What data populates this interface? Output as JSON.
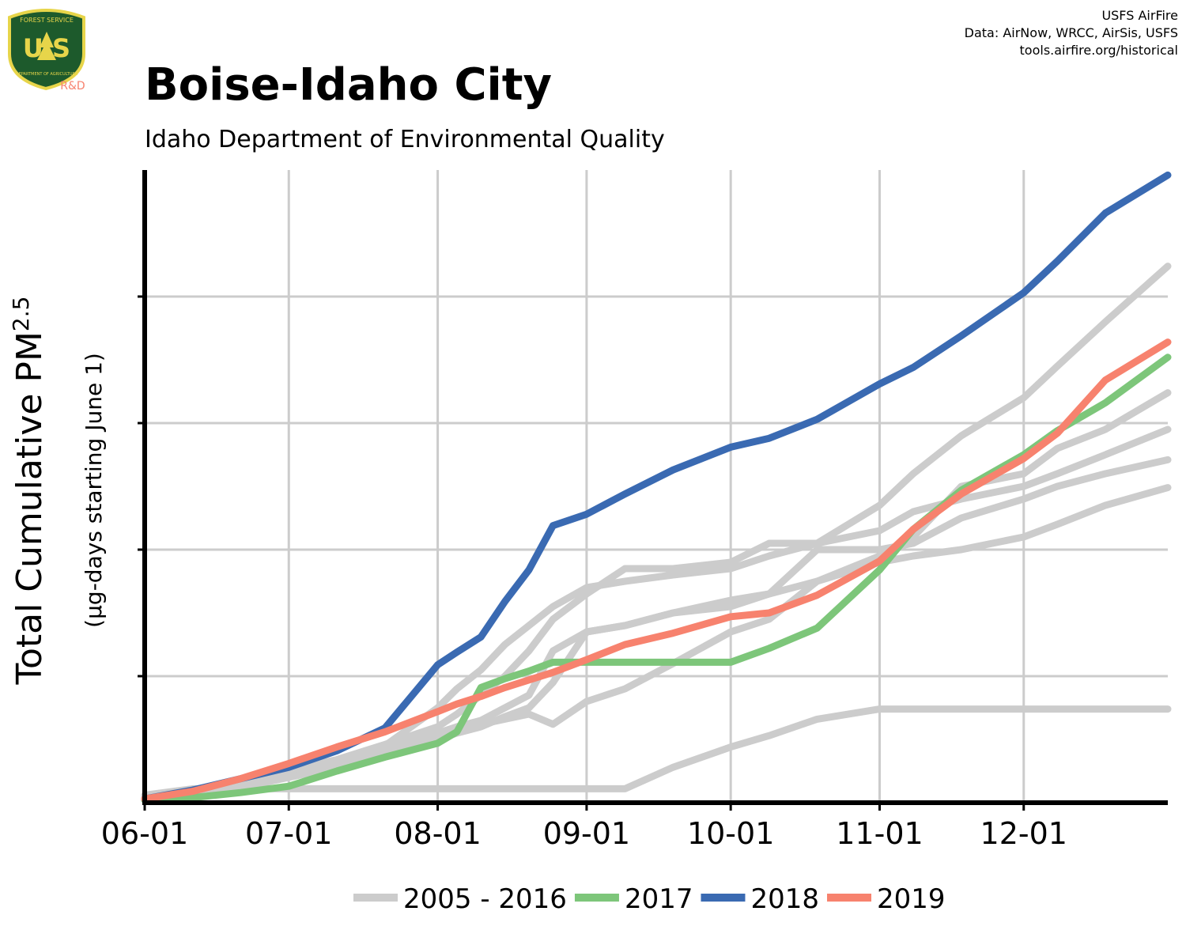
{
  "logo": {
    "top": "FOREST SERVICE",
    "letters": "U S",
    "bottom": "DEPARTMENT OF AGRICULTURE",
    "unit": "R&D"
  },
  "credits": [
    "USFS AirFire",
    "Data: AirNow, WRCC, AirSis, USFS",
    "tools.airfire.org/historical"
  ],
  "chart_data": {
    "type": "line",
    "title": "Boise-Idaho City",
    "subtitle": "Idaho Department of Environmental Quality",
    "ylabel": "Total Cumulative PM",
    "ylabel_sub": "2.5",
    "ylabel_note": "(µg-days starting June 1)",
    "x": [
      0,
      10,
      20,
      30,
      40,
      50,
      61,
      65,
      70,
      75,
      80,
      85,
      92,
      100,
      110,
      122,
      130,
      140,
      153,
      160,
      170,
      183,
      190,
      200,
      213
    ],
    "xlim": [
      0,
      213
    ],
    "xticks": [
      {
        "value": 0,
        "label": "06-01"
      },
      {
        "value": 30,
        "label": "07-01"
      },
      {
        "value": 61,
        "label": "08-01"
      },
      {
        "value": 92,
        "label": "09-01"
      },
      {
        "value": 122,
        "label": "10-01"
      },
      {
        "value": 153,
        "label": "11-01"
      },
      {
        "value": 183,
        "label": "12-01"
      }
    ],
    "ylim": [
      0,
      5
    ],
    "yticks": [
      1,
      2,
      3,
      4
    ],
    "grid": true,
    "series": [
      {
        "name": "2005 - 2016",
        "color": "#cccccc",
        "values": [
          [
            0.06,
            0.11,
            0.11,
            0.11,
            0.11,
            0.11,
            0.11,
            0.11,
            0.11,
            0.11,
            0.11,
            0.11,
            0.11,
            0.11,
            0.28,
            0.44,
            0.53,
            0.66,
            0.74,
            0.74,
            0.74,
            0.74,
            0.74,
            0.74,
            0.74
          ],
          [
            0.03,
            0.08,
            0.15,
            0.25,
            0.3,
            0.45,
            0.75,
            0.9,
            1.05,
            1.25,
            1.4,
            1.55,
            1.7,
            1.75,
            1.8,
            1.85,
            1.95,
            2.05,
            2.35,
            2.6,
            2.9,
            3.2,
            3.45,
            3.8,
            4.24
          ],
          [
            0.03,
            0.07,
            0.14,
            0.24,
            0.33,
            0.42,
            0.55,
            0.58,
            0.62,
            0.66,
            0.7,
            0.62,
            0.8,
            0.9,
            1.1,
            1.35,
            1.45,
            1.75,
            1.95,
            2.1,
            2.5,
            2.6,
            2.8,
            2.95,
            3.24
          ],
          [
            0.05,
            0.1,
            0.16,
            0.26,
            0.3,
            0.4,
            0.55,
            0.6,
            0.65,
            0.75,
            0.85,
            1.2,
            1.35,
            1.4,
            1.5,
            1.6,
            1.65,
            2.0,
            2.0,
            2.05,
            2.25,
            2.4,
            2.5,
            2.6,
            2.71
          ],
          [
            0.02,
            0.06,
            0.12,
            0.2,
            0.28,
            0.38,
            0.5,
            0.55,
            0.6,
            0.68,
            0.75,
            0.95,
            1.35,
            1.4,
            1.5,
            1.55,
            1.65,
            1.75,
            1.9,
            1.95,
            2.0,
            2.1,
            2.2,
            2.35,
            2.49
          ],
          [
            0.03,
            0.08,
            0.15,
            0.26,
            0.34,
            0.46,
            0.6,
            0.7,
            0.85,
            1.0,
            1.2,
            1.45,
            1.65,
            1.85,
            1.85,
            1.9,
            2.05,
            2.05,
            2.15,
            2.3,
            2.4,
            2.5,
            2.6,
            2.75,
            2.95
          ]
        ]
      },
      {
        "name": "2017",
        "color": "#7dc67a",
        "values": [
          0.02,
          0.04,
          0.08,
          0.13,
          0.25,
          0.36,
          0.47,
          0.56,
          0.91,
          0.98,
          1.04,
          1.11,
          1.11,
          1.11,
          1.11,
          1.11,
          1.22,
          1.38,
          1.84,
          2.16,
          2.47,
          2.75,
          2.94,
          3.16,
          3.52
        ]
      },
      {
        "name": "2018",
        "color": "#3a6ab2",
        "values": [
          0.03,
          0.1,
          0.19,
          0.28,
          0.41,
          0.59,
          1.09,
          1.19,
          1.31,
          1.59,
          1.84,
          2.19,
          2.28,
          2.44,
          2.63,
          2.81,
          2.88,
          3.03,
          3.31,
          3.44,
          3.69,
          4.03,
          4.28,
          4.66,
          4.96
        ]
      },
      {
        "name": "2019",
        "color": "#f7826e",
        "values": [
          0.03,
          0.09,
          0.19,
          0.31,
          0.44,
          0.56,
          0.72,
          0.78,
          0.84,
          0.91,
          0.97,
          1.03,
          1.13,
          1.25,
          1.34,
          1.47,
          1.5,
          1.64,
          1.91,
          2.16,
          2.44,
          2.72,
          2.92,
          3.34,
          3.64
        ]
      }
    ]
  }
}
